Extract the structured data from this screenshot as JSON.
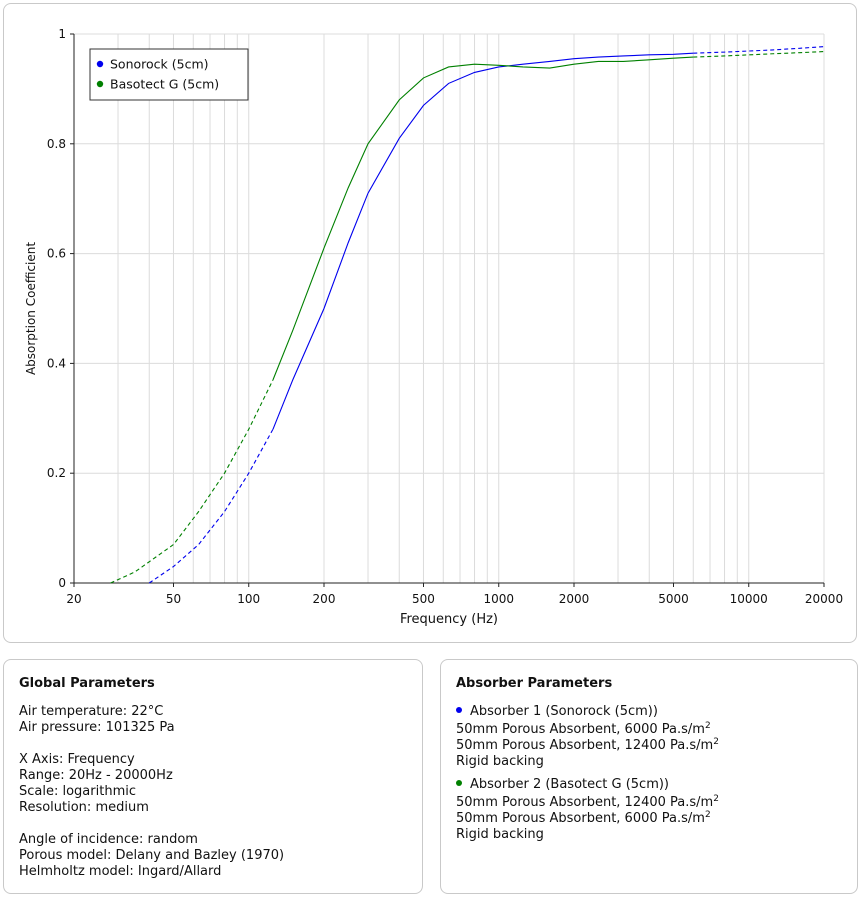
{
  "chart_data": {
    "type": "line",
    "xlabel": "Frequency (Hz)",
    "ylabel": "Absorption Coefficient",
    "xscale": "log",
    "xlim": [
      20,
      20000
    ],
    "ylim": [
      0,
      1
    ],
    "x_ticks": [
      20,
      50,
      100,
      200,
      500,
      1000,
      2000,
      5000,
      10000,
      20000
    ],
    "x_tick_labels": [
      "20",
      "50",
      "100",
      "200",
      "500",
      "1000",
      "2000",
      "5000",
      "10000",
      "20000"
    ],
    "y_ticks": [
      0,
      0.2,
      0.4,
      0.6,
      0.8,
      1
    ],
    "y_tick_labels": [
      "0",
      "0.2",
      "0.4",
      "0.6",
      "0.8",
      "1"
    ],
    "grid": true,
    "legend_position": "top-left",
    "series": [
      {
        "name": "Sonorock (5cm)",
        "color": "#0000ee",
        "x": [
          40,
          50,
          63,
          80,
          100,
          125,
          150,
          200,
          250,
          300,
          400,
          500,
          630,
          800,
          1000,
          1250,
          1600,
          2000,
          2500,
          3150,
          4000,
          5000,
          6000,
          8000,
          10000,
          12500,
          16000,
          20000
        ],
        "y": [
          0,
          0.03,
          0.07,
          0.13,
          0.2,
          0.28,
          0.37,
          0.5,
          0.62,
          0.71,
          0.81,
          0.87,
          0.91,
          0.93,
          0.94,
          0.945,
          0.95,
          0.955,
          0.958,
          0.96,
          0.962,
          0.963,
          0.965,
          0.967,
          0.969,
          0.971,
          0.974,
          0.977
        ],
        "dashed_below": 125,
        "dashed_above": 6000
      },
      {
        "name": "Basotect G (5cm)",
        "color": "#008000",
        "x": [
          28,
          35,
          50,
          63,
          80,
          100,
          125,
          150,
          200,
          250,
          300,
          400,
          500,
          630,
          800,
          1000,
          1250,
          1600,
          2000,
          2500,
          3150,
          4000,
          5000,
          6000,
          8000,
          10000,
          12500,
          16000,
          20000
        ],
        "y": [
          0,
          0.02,
          0.07,
          0.13,
          0.2,
          0.28,
          0.37,
          0.46,
          0.61,
          0.72,
          0.8,
          0.88,
          0.92,
          0.94,
          0.945,
          0.943,
          0.94,
          0.938,
          0.945,
          0.95,
          0.95,
          0.953,
          0.956,
          0.958,
          0.96,
          0.962,
          0.964,
          0.966,
          0.968
        ],
        "dashed_below": 125,
        "dashed_above": 6000
      }
    ]
  },
  "global": {
    "title": "Global Parameters",
    "lines": [
      "Air temperature: 22°C",
      "Air pressure: 101325 Pa",
      "",
      "X Axis: Frequency",
      "Range: 20Hz - 20000Hz",
      "Scale: logarithmic",
      "Resolution: medium",
      "",
      "Angle of incidence: random",
      "Porous model: Delany and Bazley (1970)",
      "Helmholtz model: Ingard/Allard"
    ]
  },
  "absorbers": {
    "title": "Absorber Parameters",
    "items": [
      {
        "heading": "Absorber 1 (Sonorock (5cm))",
        "color": "#0000ee",
        "line1": "50mm Porous Absorbent, 6000 Pa.s/m",
        "line2": "50mm Porous Absorbent, 12400 Pa.s/m",
        "sup": "2",
        "line3": "Rigid backing"
      },
      {
        "heading": "Absorber 2 (Basotect G (5cm))",
        "color": "#008000",
        "line1": "50mm Porous Absorbent, 12400 Pa.s/m",
        "line2": "50mm Porous Absorbent, 6000 Pa.s/m",
        "sup": "2",
        "line3": "Rigid backing"
      }
    ]
  }
}
